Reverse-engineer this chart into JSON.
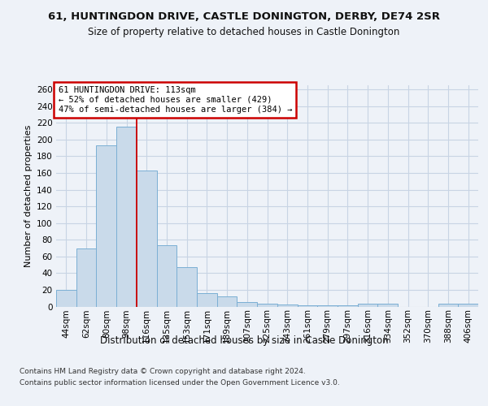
{
  "title1": "61, HUNTINGDON DRIVE, CASTLE DONINGTON, DERBY, DE74 2SR",
  "title2": "Size of property relative to detached houses in Castle Donington",
  "xlabel": "Distribution of detached houses by size in Castle Donington",
  "ylabel": "Number of detached properties",
  "footnote1": "Contains HM Land Registry data © Crown copyright and database right 2024.",
  "footnote2": "Contains public sector information licensed under the Open Government Licence v3.0.",
  "bar_labels": [
    "44sqm",
    "62sqm",
    "80sqm",
    "98sqm",
    "116sqm",
    "135sqm",
    "153sqm",
    "171sqm",
    "189sqm",
    "207sqm",
    "225sqm",
    "243sqm",
    "261sqm",
    "279sqm",
    "297sqm",
    "316sqm",
    "334sqm",
    "352sqm",
    "370sqm",
    "388sqm",
    "406sqm"
  ],
  "bar_heights": [
    20,
    70,
    193,
    215,
    163,
    73,
    47,
    16,
    12,
    5,
    3,
    2,
    1,
    1,
    1,
    3,
    3,
    0,
    0,
    3,
    3
  ],
  "bar_color": "#c9daea",
  "bar_edge_color": "#7bafd4",
  "grid_color": "#c8d4e4",
  "property_line_x": 3.5,
  "annotation_text1": "61 HUNTINGDON DRIVE: 113sqm",
  "annotation_text2": "← 52% of detached houses are smaller (429)",
  "annotation_text3": "47% of semi-detached houses are larger (384) →",
  "annotation_box_color": "#ffffff",
  "annotation_box_edge": "#cc0000",
  "ylim": [
    0,
    265
  ],
  "yticks": [
    0,
    20,
    40,
    60,
    80,
    100,
    120,
    140,
    160,
    180,
    200,
    220,
    240,
    260
  ],
  "background_color": "#eef2f8",
  "title1_fontsize": 9.5,
  "title2_fontsize": 8.5,
  "ylabel_fontsize": 8,
  "xlabel_fontsize": 8.5,
  "footnote_fontsize": 6.5,
  "tick_fontsize": 7.5,
  "annot_fontsize": 7.5
}
